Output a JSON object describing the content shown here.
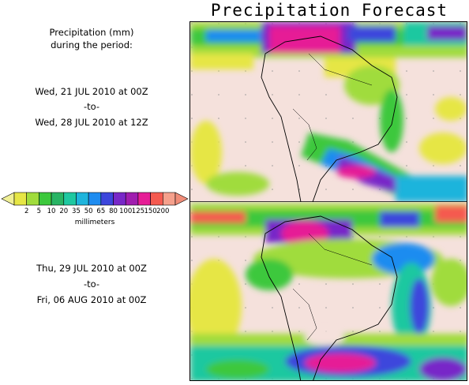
{
  "title": "Precipitation Forecast",
  "description": {
    "line1": "Precipitation (mm)",
    "line2": "during the period:"
  },
  "period1": {
    "start": "Wed, 21 JUL 2010 at 00Z",
    "separator": "-to-",
    "end": "Wed, 28 JUL 2010 at 12Z"
  },
  "period2": {
    "start": "Thu, 29 JUL 2010 at 00Z",
    "separator": "-to-",
    "end": "Fri, 06 AUG 2010 at 00Z"
  },
  "legend": {
    "units": "millimeters",
    "ticks": [
      "2",
      "5",
      "10",
      "20",
      "35",
      "50",
      "65",
      "80",
      "100",
      "125",
      "150",
      "200"
    ],
    "colors": [
      "#e6e645",
      "#a0dc3c",
      "#3cc83c",
      "#28b464",
      "#1ec8a0",
      "#1eb4dc",
      "#1e8cf0",
      "#3c46dc",
      "#7828c8",
      "#a01eaf",
      "#e61e96",
      "#f55a50",
      "#f5a08c"
    ],
    "low_cap_color": "#f0f096",
    "high_cap_color": "#f08c78"
  },
  "map_colors": {
    "background_dry": "#f5e1dc",
    "ocean_light": "#f5e1dc",
    "coast": "#000000"
  }
}
